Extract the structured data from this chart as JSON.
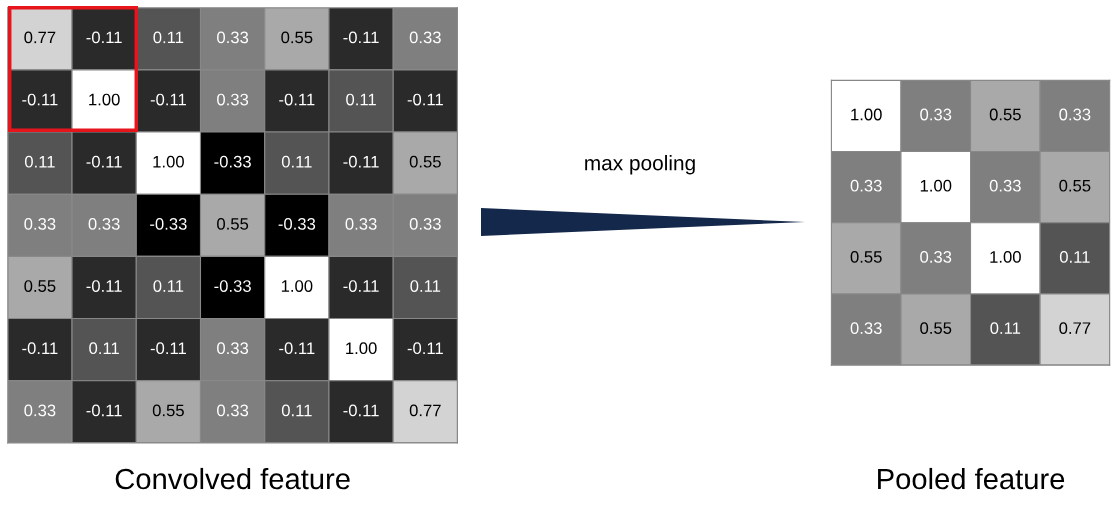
{
  "chart_data": [
    {
      "type": "heatmap",
      "xlabel": "Convolved feature",
      "tick_labels": false,
      "categories": [
        null,
        null,
        null,
        null,
        null,
        null,
        null
      ],
      "y_categories": [
        null,
        null,
        null,
        null,
        null,
        null,
        null
      ],
      "cells": [
        [
          0.77,
          -0.11,
          0.11,
          0.33,
          0.55,
          -0.11,
          0.33
        ],
        [
          -0.11,
          1.0,
          -0.11,
          0.33,
          -0.11,
          0.11,
          -0.11
        ],
        [
          0.11,
          -0.11,
          1.0,
          -0.33,
          0.11,
          -0.11,
          0.55
        ],
        [
          0.33,
          0.33,
          -0.33,
          0.55,
          -0.33,
          0.33,
          0.33
        ],
        [
          0.55,
          -0.11,
          0.11,
          -0.33,
          1.0,
          -0.11,
          0.11
        ],
        [
          -0.11,
          0.11,
          -0.11,
          0.33,
          -0.11,
          1.0,
          -0.11
        ],
        [
          0.33,
          -0.11,
          0.55,
          0.33,
          0.11,
          -0.11,
          0.77
        ]
      ],
      "cell_labels": [
        [
          "0.77",
          "-0.11",
          "0.11",
          "0.33",
          "0.55",
          "-0.11",
          "0.33"
        ],
        [
          "-0.11",
          "1.00",
          "-0.11",
          "0.33",
          "-0.11",
          "0.11",
          "-0.11"
        ],
        [
          "0.11",
          "-0.11",
          "1.00",
          "-0.33",
          "0.11",
          "-0.11",
          "0.55"
        ],
        [
          "0.33",
          "0.33",
          "-0.33",
          "0.55",
          "-0.33",
          "0.33",
          "0.33"
        ],
        [
          "0.55",
          "-0.11",
          "0.11",
          "-0.33",
          "1.00",
          "-0.11",
          "0.11"
        ],
        [
          "-0.11",
          "0.11",
          "-0.11",
          "0.33",
          "-0.11",
          "1.00",
          "-0.11"
        ],
        [
          "0.33",
          "-0.11",
          "0.55",
          "0.33",
          "0.11",
          "-0.11",
          "0.77"
        ]
      ]
    },
    {
      "type": "heatmap",
      "xlabel": "Pooled feature",
      "tick_labels": false,
      "annotations": [
        "max pooling"
      ],
      "categories": [
        null,
        null,
        null,
        null
      ],
      "y_categories": [
        null,
        null,
        null,
        null
      ],
      "cells": [
        [
          1.0,
          0.33,
          0.55,
          0.33
        ],
        [
          0.33,
          1.0,
          0.33,
          0.55
        ],
        [
          0.55,
          0.33,
          1.0,
          0.11
        ],
        [
          0.33,
          0.55,
          0.11,
          0.77
        ]
      ],
      "cell_labels": [
        [
          "1.00",
          "0.33",
          "0.55",
          "0.33"
        ],
        [
          "0.33",
          "1.00",
          "0.33",
          "0.55"
        ],
        [
          "0.55",
          "0.33",
          "1.00",
          "0.11"
        ],
        [
          "0.33",
          "0.55",
          "0.11",
          "0.77"
        ]
      ]
    }
  ]
}
